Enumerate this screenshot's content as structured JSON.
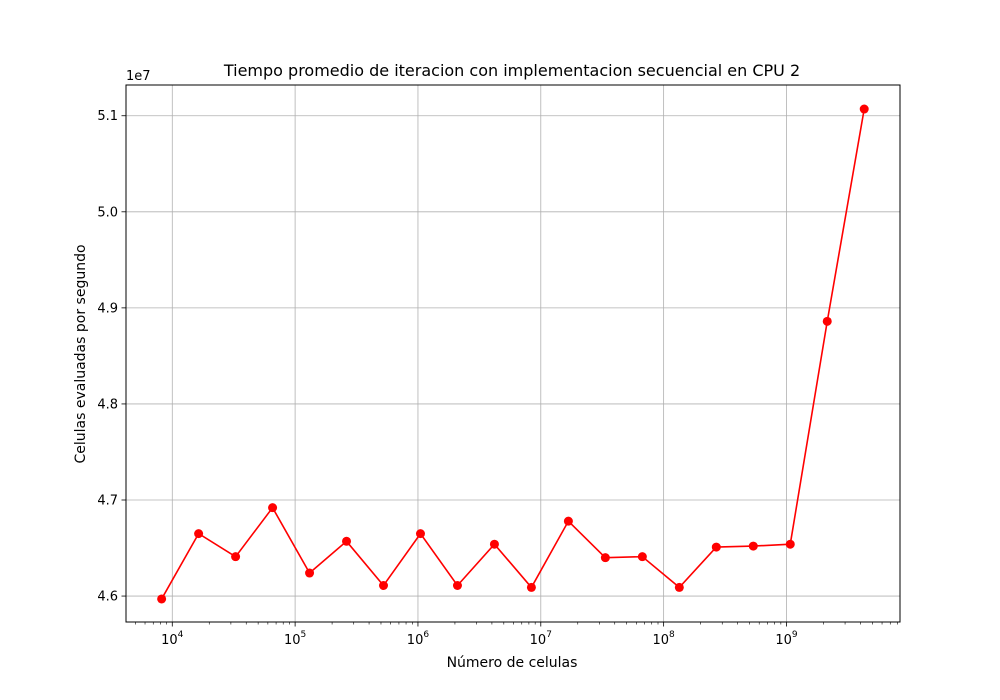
{
  "chart_data": {
    "type": "line",
    "title": "Tiempo promedio de iteracion con implementacion secuencial en CPU 2",
    "xlabel": "Número de celulas",
    "ylabel": "Celulas evaluadas por segundo",
    "x_scale": "log",
    "y_offset_label": "1e7",
    "grid": true,
    "marker": "circle",
    "line_color": "#ff0000",
    "x_ticks": [
      {
        "base": "10",
        "exp": "4",
        "value": 10000
      },
      {
        "base": "10",
        "exp": "5",
        "value": 100000
      },
      {
        "base": "10",
        "exp": "6",
        "value": 1000000
      },
      {
        "base": "10",
        "exp": "7",
        "value": 10000000
      },
      {
        "base": "10",
        "exp": "8",
        "value": 100000000
      },
      {
        "base": "10",
        "exp": "9",
        "value": 1000000000
      }
    ],
    "y_ticks": [
      {
        "label": "4.6",
        "value": 46000000
      },
      {
        "label": "4.7",
        "value": 47000000
      },
      {
        "label": "4.8",
        "value": 48000000
      },
      {
        "label": "4.9",
        "value": 49000000
      },
      {
        "label": "5.0",
        "value": 50000000
      },
      {
        "label": "5.1",
        "value": 51000000
      }
    ],
    "xlim": [
      4200,
      8400000000
    ],
    "ylim": [
      45730000,
      51320000
    ],
    "x": [
      8192,
      16384,
      32768,
      65536,
      131072,
      262144,
      524288,
      1048576,
      2097152,
      4194304,
      8388608,
      16777216,
      33554432,
      67108864,
      134217728,
      268435456,
      536870912,
      1073741824,
      2147483648,
      4294967296
    ],
    "y": [
      45970000,
      46650000,
      46410000,
      46920000,
      46240000,
      46570000,
      46110000,
      46650000,
      46110000,
      46540000,
      46090000,
      46780000,
      46400000,
      46410000,
      46090000,
      46510000,
      46520000,
      46540000,
      48860000,
      51070000
    ]
  }
}
